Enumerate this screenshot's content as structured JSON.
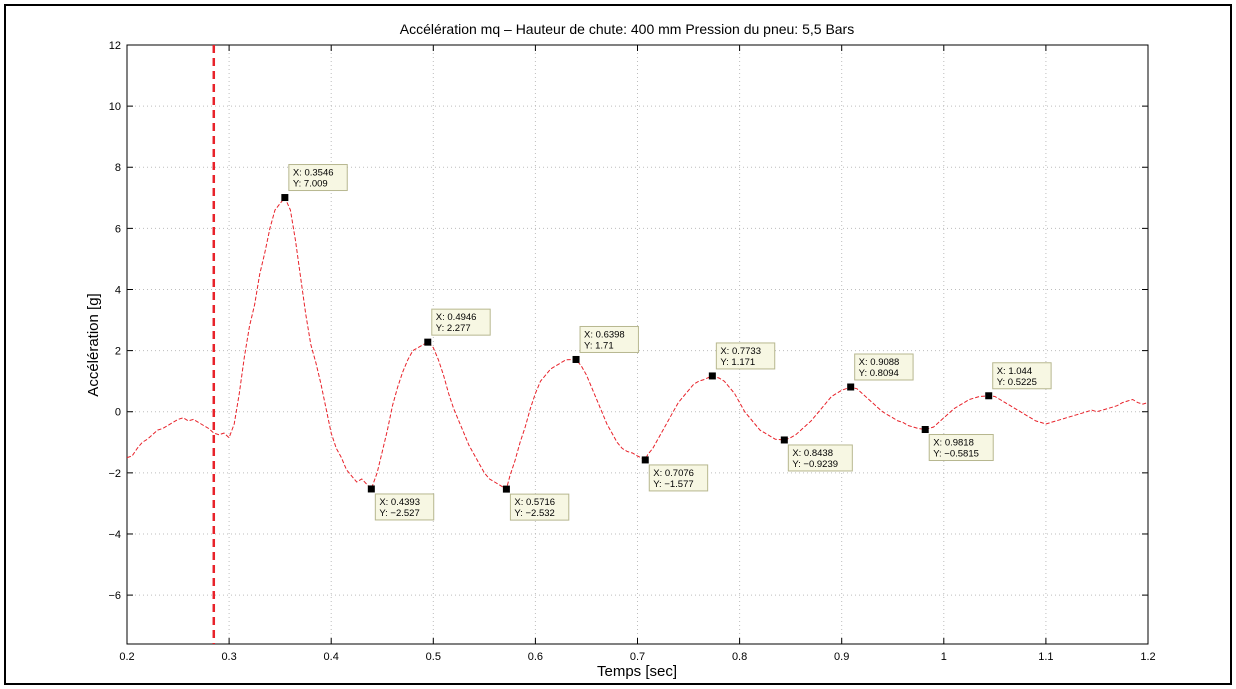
{
  "chart_data": {
    "type": "line",
    "title": "Accélération mq – Hauteur de chute: 400 mm   Pression du pneu: 5,5 Bars",
    "xlabel": "Temps [sec]",
    "ylabel": "Accélération [g]",
    "xlim": [
      0.2,
      1.2
    ],
    "ylim": [
      -7.6,
      12
    ],
    "xticks": [
      0.2,
      0.3,
      0.4,
      0.5,
      0.6,
      0.7,
      0.8,
      0.9,
      1.0,
      1.1,
      1.2
    ],
    "xtick_labels": [
      "0.2",
      "0.3",
      "0.4",
      "0.5",
      "0.6",
      "0.7",
      "0.8",
      "0.9",
      "1",
      "1.1",
      "1.2"
    ],
    "yticks": [
      -6,
      -4,
      -2,
      0,
      2,
      4,
      6,
      8,
      10,
      12
    ],
    "ytick_labels": [
      "−6",
      "−4",
      "−2",
      "0",
      "2",
      "4",
      "6",
      "8",
      "10",
      "12"
    ],
    "grid": true,
    "series_color": "#e8222a",
    "series": [
      {
        "x": [
          0.2,
          0.205,
          0.21,
          0.215,
          0.22,
          0.225,
          0.23,
          0.235,
          0.24,
          0.245,
          0.25,
          0.255,
          0.26,
          0.265,
          0.27,
          0.275,
          0.28,
          0.285,
          0.29,
          0.295,
          0.3,
          0.305,
          0.31,
          0.315,
          0.32,
          0.325,
          0.33,
          0.335,
          0.34,
          0.345,
          0.3546,
          0.36,
          0.365,
          0.37,
          0.375,
          0.38,
          0.385,
          0.39,
          0.395,
          0.4,
          0.405,
          0.41,
          0.415,
          0.42,
          0.425,
          0.43,
          0.4393,
          0.445,
          0.45,
          0.455,
          0.46,
          0.465,
          0.47,
          0.475,
          0.48,
          0.485,
          0.4946,
          0.5,
          0.505,
          0.51,
          0.515,
          0.52,
          0.525,
          0.53,
          0.535,
          0.54,
          0.545,
          0.55,
          0.555,
          0.56,
          0.565,
          0.5716,
          0.575,
          0.58,
          0.585,
          0.59,
          0.595,
          0.6,
          0.605,
          0.61,
          0.615,
          0.62,
          0.625,
          0.63,
          0.6398,
          0.645,
          0.65,
          0.655,
          0.66,
          0.665,
          0.67,
          0.675,
          0.68,
          0.685,
          0.69,
          0.695,
          0.7,
          0.7076,
          0.71,
          0.715,
          0.72,
          0.725,
          0.73,
          0.735,
          0.74,
          0.745,
          0.75,
          0.755,
          0.76,
          0.765,
          0.7733,
          0.78,
          0.785,
          0.79,
          0.795,
          0.8,
          0.805,
          0.81,
          0.815,
          0.82,
          0.825,
          0.83,
          0.835,
          0.8438,
          0.85,
          0.855,
          0.86,
          0.865,
          0.87,
          0.875,
          0.88,
          0.885,
          0.89,
          0.895,
          0.9,
          0.9088,
          0.915,
          0.92,
          0.925,
          0.93,
          0.935,
          0.94,
          0.945,
          0.95,
          0.955,
          0.96,
          0.965,
          0.97,
          0.975,
          0.9818,
          0.99,
          0.995,
          1.0,
          1.005,
          1.01,
          1.015,
          1.02,
          1.025,
          1.03,
          1.035,
          1.044,
          1.05,
          1.055,
          1.06,
          1.065,
          1.07,
          1.075,
          1.08,
          1.085,
          1.09,
          1.095,
          1.1,
          1.105,
          1.11,
          1.115,
          1.12,
          1.125,
          1.13,
          1.135,
          1.14,
          1.145,
          1.15,
          1.155,
          1.16,
          1.165,
          1.17,
          1.175,
          1.18,
          1.185,
          1.19,
          1.195,
          1.2
        ],
        "y": [
          -1.5,
          -1.45,
          -1.2,
          -1.0,
          -0.9,
          -0.75,
          -0.6,
          -0.55,
          -0.45,
          -0.35,
          -0.25,
          -0.2,
          -0.3,
          -0.25,
          -0.35,
          -0.45,
          -0.55,
          -0.7,
          -0.75,
          -0.7,
          -0.85,
          -0.4,
          0.6,
          1.8,
          2.8,
          3.5,
          4.5,
          5.2,
          6.0,
          6.6,
          7.009,
          6.6,
          5.6,
          4.4,
          3.2,
          2.2,
          1.6,
          0.9,
          0.1,
          -0.7,
          -1.2,
          -1.5,
          -1.9,
          -2.1,
          -2.3,
          -2.2,
          -2.527,
          -2.0,
          -1.3,
          -0.6,
          0.2,
          0.8,
          1.3,
          1.7,
          2.0,
          2.1,
          2.277,
          2.1,
          1.7,
          1.2,
          0.6,
          0.1,
          -0.3,
          -0.7,
          -1.1,
          -1.4,
          -1.7,
          -2.0,
          -2.2,
          -2.3,
          -2.4,
          -2.532,
          -2.1,
          -1.6,
          -1.0,
          -0.5,
          0.1,
          0.6,
          1.0,
          1.2,
          1.4,
          1.5,
          1.6,
          1.7,
          1.71,
          1.5,
          1.2,
          0.8,
          0.4,
          0.0,
          -0.4,
          -0.7,
          -1.0,
          -1.2,
          -1.3,
          -1.35,
          -1.45,
          -1.577,
          -1.4,
          -1.2,
          -0.9,
          -0.6,
          -0.3,
          0.0,
          0.3,
          0.5,
          0.7,
          0.9,
          1.0,
          1.05,
          1.171,
          1.1,
          1.0,
          0.8,
          0.6,
          0.3,
          0.0,
          -0.2,
          -0.4,
          -0.6,
          -0.7,
          -0.8,
          -0.9,
          -0.9239,
          -0.85,
          -0.75,
          -0.6,
          -0.45,
          -0.3,
          -0.1,
          0.1,
          0.3,
          0.5,
          0.6,
          0.7,
          0.8094,
          0.75,
          0.6,
          0.45,
          0.3,
          0.15,
          0.0,
          -0.1,
          -0.2,
          -0.3,
          -0.35,
          -0.45,
          -0.5,
          -0.55,
          -0.5815,
          -0.5,
          -0.35,
          -0.2,
          -0.05,
          0.1,
          0.2,
          0.3,
          0.4,
          0.45,
          0.5,
          0.5225,
          0.5,
          0.4,
          0.3,
          0.2,
          0.1,
          0.0,
          -0.1,
          -0.2,
          -0.3,
          -0.35,
          -0.4,
          -0.35,
          -0.3,
          -0.25,
          -0.2,
          -0.15,
          -0.1,
          -0.05,
          0.0,
          0.05,
          0.0,
          0.05,
          0.1,
          0.15,
          0.2,
          0.3,
          0.35,
          0.4,
          0.3,
          0.25,
          0.3
        ]
      }
    ],
    "vertical_marker": {
      "x": 0.285,
      "style": "dashed",
      "color": "#e8222a"
    },
    "annotations": [
      {
        "x": 0.3546,
        "y": 7.009,
        "xlabel": "X: 0.3546",
        "ylabel": "Y: 7.009",
        "pos": "above"
      },
      {
        "x": 0.4393,
        "y": -2.527,
        "xlabel": "X: 0.4393",
        "ylabel": "Y: −2.527",
        "pos": "below"
      },
      {
        "x": 0.4946,
        "y": 2.277,
        "xlabel": "X: 0.4946",
        "ylabel": "Y: 2.277",
        "pos": "above"
      },
      {
        "x": 0.5716,
        "y": -2.532,
        "xlabel": "X: 0.5716",
        "ylabel": "Y: −2.532",
        "pos": "below"
      },
      {
        "x": 0.6398,
        "y": 1.71,
        "xlabel": "X: 0.6398",
        "ylabel": "Y: 1.71",
        "pos": "above"
      },
      {
        "x": 0.7076,
        "y": -1.577,
        "xlabel": "X: 0.7076",
        "ylabel": "Y: −1.577",
        "pos": "below"
      },
      {
        "x": 0.7733,
        "y": 1.171,
        "xlabel": "X: 0.7733",
        "ylabel": "Y: 1.171",
        "pos": "above"
      },
      {
        "x": 0.8438,
        "y": -0.9239,
        "xlabel": "X: 0.8438",
        "ylabel": "Y: −0.9239",
        "pos": "below"
      },
      {
        "x": 0.9088,
        "y": 0.8094,
        "xlabel": "X: 0.9088",
        "ylabel": "Y: 0.8094",
        "pos": "above"
      },
      {
        "x": 0.9818,
        "y": -0.5815,
        "xlabel": "X: 0.9818",
        "ylabel": "Y: −0.5815",
        "pos": "below"
      },
      {
        "x": 1.044,
        "y": 0.5225,
        "xlabel": "X: 1.044",
        "ylabel": "Y: 0.5225",
        "pos": "above"
      }
    ]
  }
}
